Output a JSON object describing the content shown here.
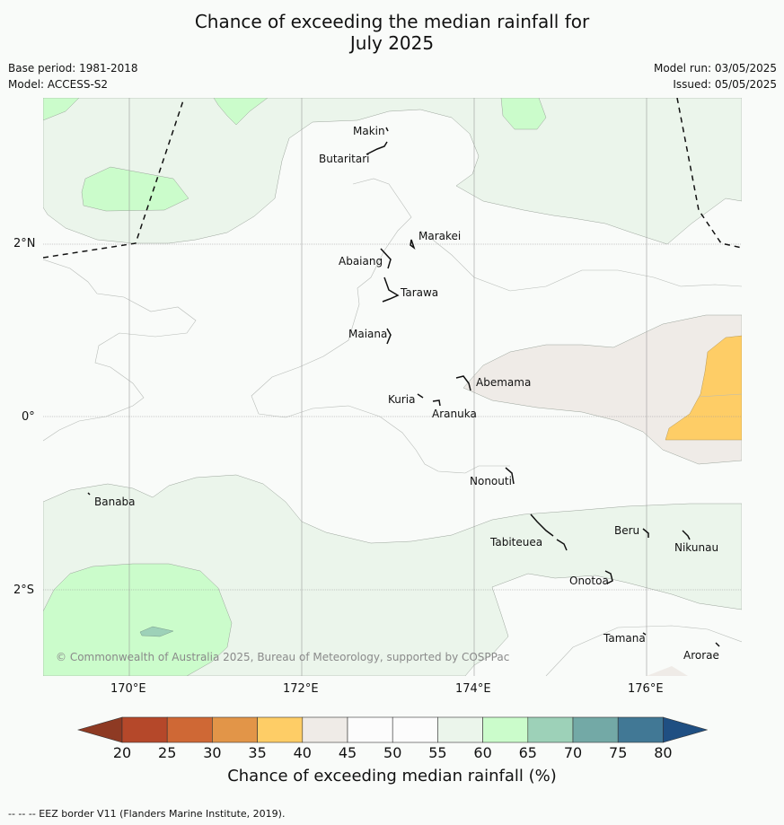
{
  "title_line1": "Chance of exceeding the median rainfall for",
  "title_line2": "July 2025",
  "meta": {
    "base_period": "Base period: 1981-2018",
    "model": "Model: ACCESS-S2",
    "model_run": "Model run: 03/05/2025",
    "issued": "Issued: 05/05/2025"
  },
  "map": {
    "lat_labels": [
      "2°N",
      "0°",
      "2°S"
    ],
    "lon_labels": [
      "170°E",
      "172°E",
      "174°E",
      "176°E"
    ],
    "places": {
      "makin": "Makin",
      "butaritari": "Butaritari",
      "marakei": "Marakei",
      "abaiang": "Abaiang",
      "tarawa": "Tarawa",
      "maiana": "Maiana",
      "abemama": "Abemama",
      "kuria": "Kuria",
      "aranuka": "Aranuka",
      "nonouti": "Nonouti",
      "banaba": "Banaba",
      "beru": "Beru",
      "tabiteuea": "Tabiteuea",
      "nikunau": "Nikunau",
      "onotoa": "Onotoa",
      "tamana": "Tamana",
      "arorae": "Arorae"
    },
    "copyright": "© Commonwealth of Australia 2025, Bureau of Meteorology, supported by COSPPac"
  },
  "colorbar": {
    "ticks": [
      "20",
      "25",
      "30",
      "35",
      "40",
      "45",
      "50",
      "55",
      "60",
      "65",
      "70",
      "75",
      "80"
    ],
    "colors": [
      "#b5482a",
      "#cf6835",
      "#e29548",
      "#fecd66",
      "#efebe7",
      "#fcfcfc",
      "#fcfcfc",
      "#ebf5eb",
      "#cbfccb",
      "#9dd1b8",
      "#73a9a6",
      "#417895"
    ],
    "low_color": "#8e3a23",
    "high_color": "#1f4f82",
    "title": "Chance of exceeding median rainfall (%)"
  },
  "footer": "--  --  -- EEZ border V11 (Flanders Marine Institute, 2019)."
}
